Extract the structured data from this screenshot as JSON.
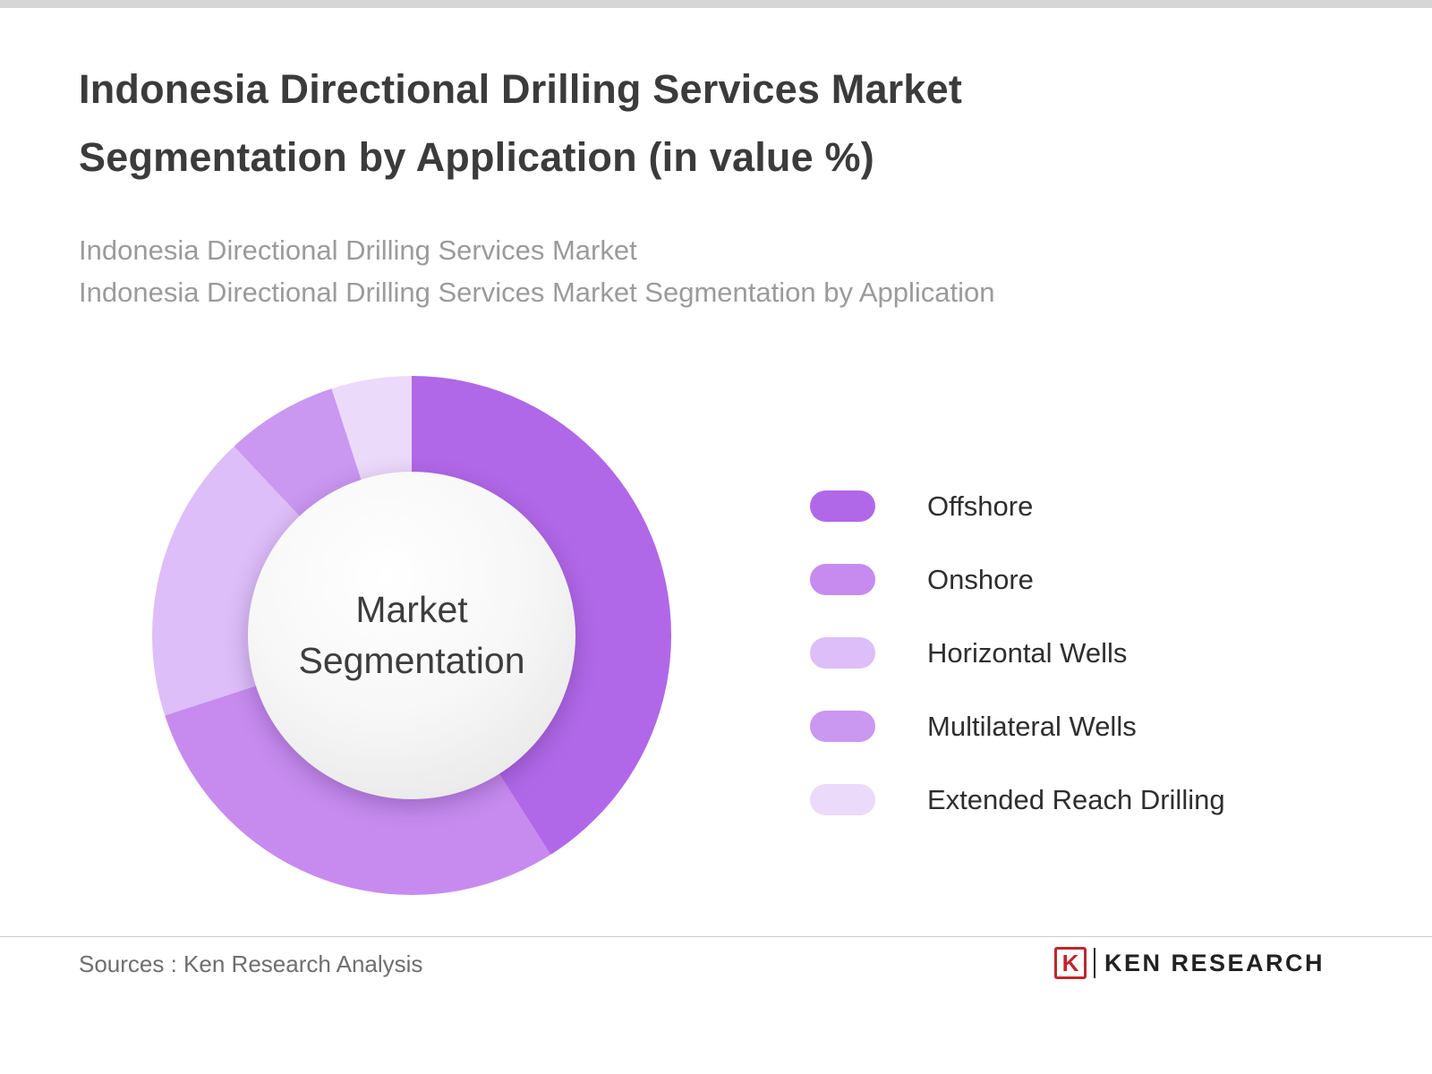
{
  "header": {
    "title_line1": "Indonesia Directional Drilling Services Market",
    "title_line2": "Segmentation by Application (in value %)",
    "subtitle_line1": "Indonesia Directional Drilling Services Market",
    "subtitle_line2": "Indonesia Directional Drilling Services Market Segmentation by Application"
  },
  "chart_data": {
    "type": "pie",
    "subtype": "donut",
    "title": "Indonesia Directional Drilling Services Market Segmentation by Application (in value %)",
    "center_label": "Market Segmentation",
    "values_are_percent": true,
    "start_angle_deg": 0,
    "legend_position": "right",
    "segments": [
      {
        "label": "Offshore",
        "value": 41,
        "color": "#b168e8"
      },
      {
        "label": "Onshore",
        "value": 29,
        "color": "#c78bf0"
      },
      {
        "label": "Horizontal Wells",
        "value": 18,
        "color": "#ddbef8"
      },
      {
        "label": "Multilateral Wells",
        "value": 7,
        "color": "#ca97f1"
      },
      {
        "label": "Extended Reach Drilling",
        "value": 5,
        "color": "#ecdafb"
      }
    ]
  },
  "footer": {
    "sources": "Sources : Ken Research Analysis",
    "logo_letter": "K",
    "logo_text": "KEN RESEARCH"
  }
}
